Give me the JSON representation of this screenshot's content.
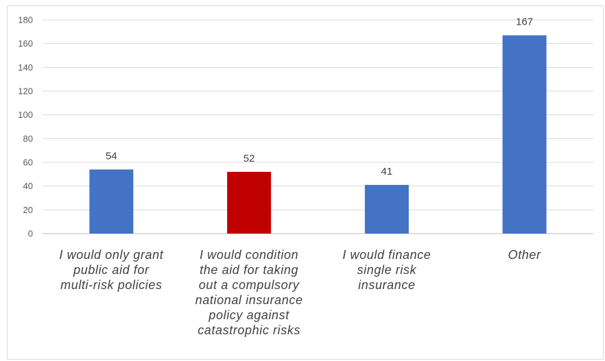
{
  "chart_data": {
    "type": "bar",
    "title": "",
    "xlabel": "",
    "ylabel": "",
    "ylim": [
      0,
      180
    ],
    "yticks": [
      0,
      20,
      40,
      60,
      80,
      100,
      120,
      140,
      160,
      180
    ],
    "grid": true,
    "legend": "none",
    "categories": [
      [
        "I would only grant",
        "public aid for",
        "multi-risk policies"
      ],
      [
        "I would condition",
        "the aid for taking",
        "out a compulsory",
        "national insurance",
        "policy against",
        "catastrophic risks"
      ],
      [
        "I would finance",
        "single risk",
        "insurance"
      ],
      [
        "Other"
      ]
    ],
    "values": [
      54,
      52,
      41,
      167
    ],
    "bar_colors": [
      "#4472C4",
      "#C00000",
      "#4472C4",
      "#4472C4"
    ],
    "gridline_color": "#d9d9d9",
    "axis_color": "#bfbfbf"
  }
}
